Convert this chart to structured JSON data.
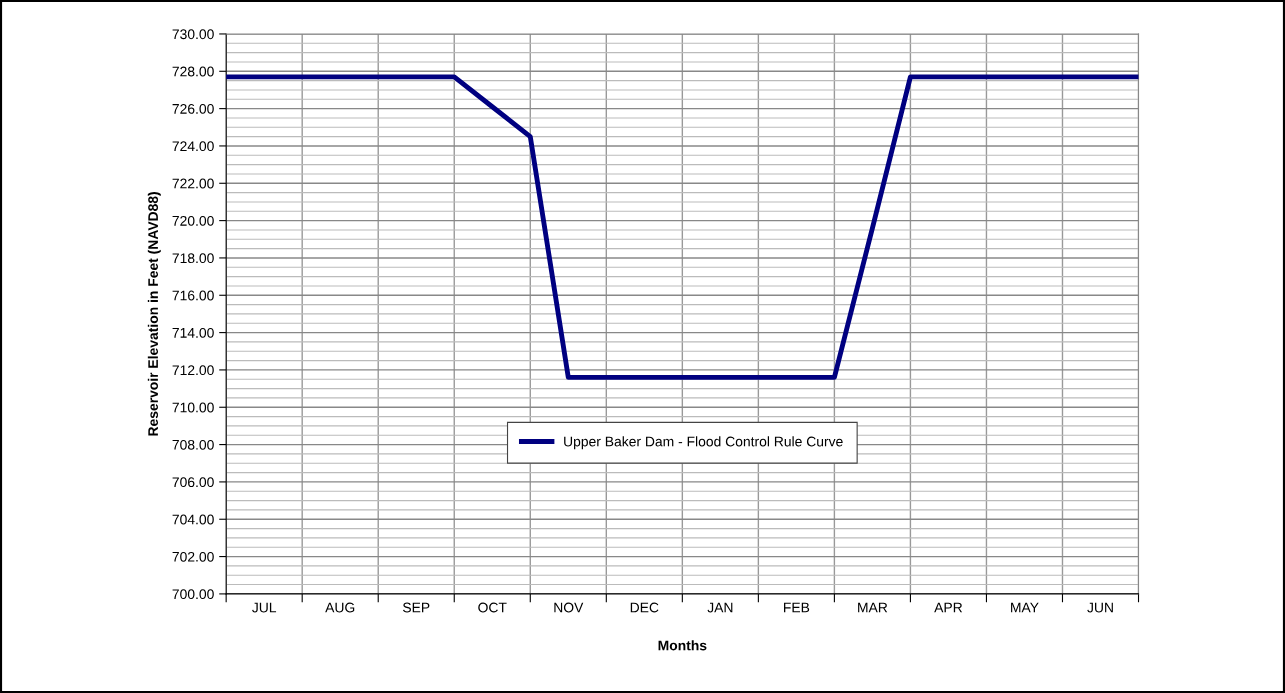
{
  "chart_data": {
    "type": "line",
    "xlabel": "Months",
    "ylabel": "Reservoir Elevation in Feet (NAVD88)",
    "categories": [
      null,
      "JUL",
      null,
      "AUG",
      null,
      "SEP",
      null,
      "OCT",
      null,
      "NOV",
      null,
      "DEC",
      null,
      "JAN",
      null,
      "FEB",
      null,
      "MAR",
      null,
      "APR",
      null,
      "MAY",
      null,
      "JUN",
      null
    ],
    "series": [
      {
        "name": "Upper Baker Dam - Flood Control Rule Curve",
        "color": "#000080",
        "values": [
          727.7,
          727.7,
          727.7,
          727.7,
          727.7,
          727.7,
          727.7,
          726.1,
          724.5,
          711.6,
          711.6,
          711.6,
          711.6,
          711.6,
          711.6,
          711.6,
          711.6,
          719.6,
          727.7,
          727.7,
          727.7,
          727.7,
          727.7,
          727.7,
          727.7
        ]
      }
    ],
    "ylim": [
      700,
      730
    ],
    "yticks": [
      {
        "value": 700,
        "label": "700.00"
      },
      {
        "value": 702,
        "label": "702.00"
      },
      {
        "value": 704,
        "label": "704.00"
      },
      {
        "value": 706,
        "label": "706.00"
      },
      {
        "value": 708,
        "label": "708.00"
      },
      {
        "value": 710,
        "label": "710.00"
      },
      {
        "value": 712,
        "label": "712.00"
      },
      {
        "value": 714,
        "label": "714.00"
      },
      {
        "value": 716,
        "label": "716.00"
      },
      {
        "value": 718,
        "label": "718.00"
      },
      {
        "value": 720,
        "label": "720.00"
      },
      {
        "value": 722,
        "label": "722.00"
      },
      {
        "value": 724,
        "label": "724.00"
      },
      {
        "value": 726,
        "label": "726.00"
      },
      {
        "value": 728,
        "label": "728.00"
      },
      {
        "value": 730,
        "label": "730.00"
      }
    ],
    "grid": true,
    "legend": "center",
    "marker": "none",
    "line_style": "solid"
  }
}
